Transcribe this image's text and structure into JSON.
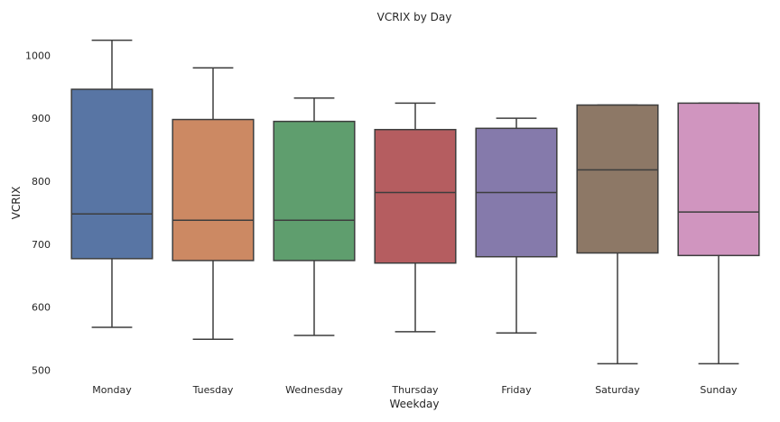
{
  "chart_data": {
    "type": "boxplot",
    "title": "VCRIX by Day",
    "xlabel": "Weekday",
    "ylabel": "VCRIX",
    "ylim": [
      492,
      1042
    ],
    "yticks": [
      500,
      600,
      700,
      800,
      900,
      1000
    ],
    "grid": false,
    "categories": [
      "Monday",
      "Tuesday",
      "Wednesday",
      "Thursday",
      "Friday",
      "Saturday",
      "Sunday"
    ],
    "series": [
      {
        "category": "Monday",
        "whislo": 568,
        "q1": 677,
        "med": 748,
        "q3": 946,
        "whishi": 1024,
        "color": "#5875a4"
      },
      {
        "category": "Tuesday",
        "whislo": 549,
        "q1": 674,
        "med": 738,
        "q3": 898,
        "whishi": 980,
        "color": "#cc8963"
      },
      {
        "category": "Wednesday",
        "whislo": 555,
        "q1": 674,
        "med": 738,
        "q3": 895,
        "whishi": 932,
        "color": "#5f9e6e"
      },
      {
        "category": "Thursday",
        "whislo": 561,
        "q1": 670,
        "med": 782,
        "q3": 882,
        "whishi": 924,
        "color": "#b55d60"
      },
      {
        "category": "Friday",
        "whislo": 559,
        "q1": 680,
        "med": 782,
        "q3": 884,
        "whishi": 900,
        "color": "#857aab"
      },
      {
        "category": "Saturday",
        "whislo": 510,
        "q1": 686,
        "med": 818,
        "q3": 921,
        "whishi": 921,
        "color": "#8d7866"
      },
      {
        "category": "Sunday",
        "whislo": 510,
        "q1": 682,
        "med": 751,
        "q3": 924,
        "whishi": 924,
        "color": "#d095bf"
      }
    ],
    "line_color": "#3d3d3d"
  }
}
